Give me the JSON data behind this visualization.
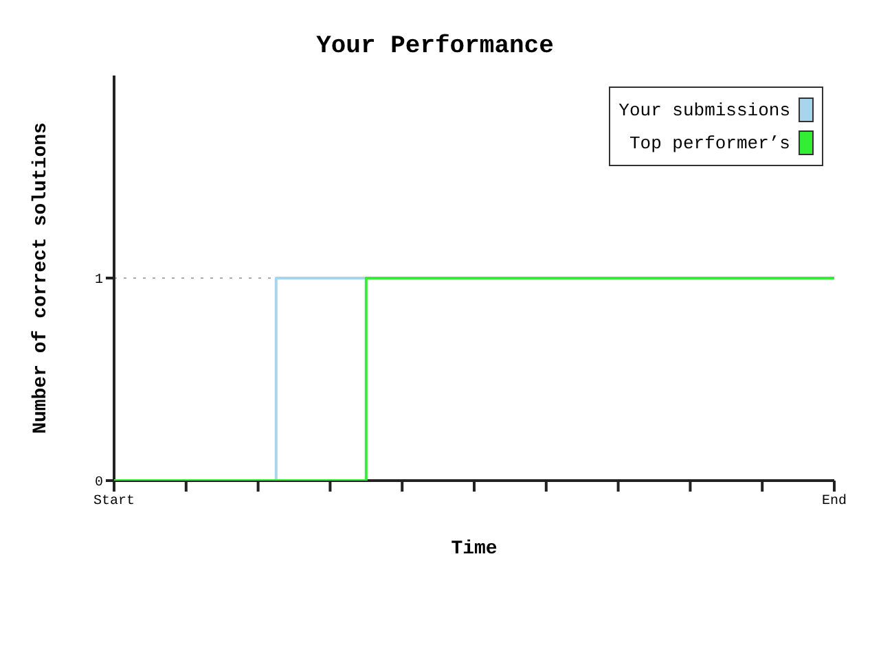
{
  "chart_data": {
    "type": "step",
    "title": "Your Performance",
    "xlabel": "Time",
    "ylabel": "Number of correct solutions",
    "categories": [
      "Start",
      null,
      null,
      null,
      null,
      null,
      null,
      null,
      null,
      null,
      null,
      null,
      null,
      null,
      null,
      null,
      null,
      null,
      null,
      null,
      null,
      null,
      null,
      null,
      null,
      null,
      null,
      null,
      null,
      null,
      null,
      null,
      null,
      null,
      null,
      null,
      null,
      null,
      null,
      null,
      "End"
    ],
    "ylim": [
      0,
      2
    ],
    "yticks": [
      0,
      1
    ],
    "grid": "y",
    "legend": "top right",
    "series": [
      {
        "name": "Your submissions",
        "color": "#a8d4ec",
        "values": [
          null,
          null,
          null,
          null,
          null,
          null,
          null,
          null,
          0,
          1,
          1,
          1,
          1,
          1,
          1,
          null,
          null,
          null,
          null,
          null,
          null,
          null,
          null,
          null,
          null,
          null,
          null,
          null,
          null,
          null,
          null,
          null,
          null,
          null,
          null,
          null,
          null,
          null,
          null,
          null,
          null
        ]
      },
      {
        "name": "Top performer’s",
        "color": "#33ee33",
        "values": [
          0,
          0,
          0,
          0,
          0,
          0,
          0,
          0,
          0,
          0,
          0,
          0,
          0,
          0,
          1,
          1,
          1,
          1,
          1,
          1,
          1,
          1,
          1,
          1,
          1,
          1,
          1,
          1,
          1,
          1,
          1,
          1,
          1,
          1,
          1,
          1,
          1,
          1,
          1,
          1,
          1
        ]
      }
    ]
  }
}
